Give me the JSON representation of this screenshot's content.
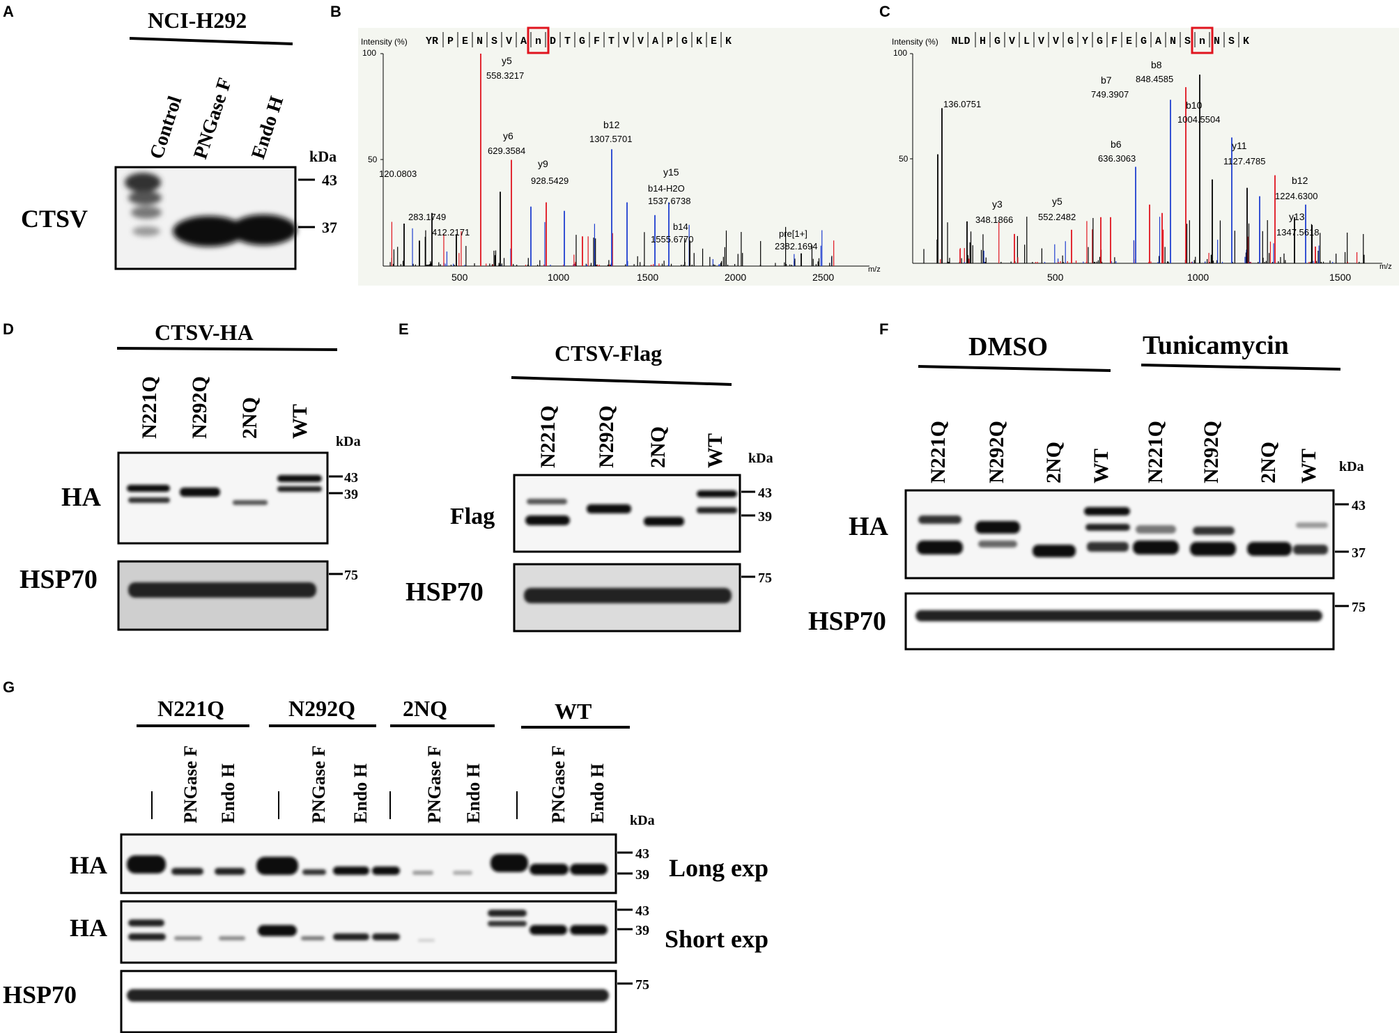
{
  "colors": {
    "y_ion": "#e0141e",
    "b_ion": "#1f3fd0",
    "other": "#000000",
    "highlight": "#e0141e",
    "spec_bg": "#f4f6f0"
  },
  "panelA": {
    "letter": "A",
    "title": "NCI-H292",
    "lanes": [
      "Control",
      "PNGase F",
      "Endo H"
    ],
    "kda_label": "kDa",
    "markers": [
      "43",
      "37"
    ],
    "row_label": "CTSV"
  },
  "panelB": {
    "letter": "B",
    "ylabel": "Intensity (%)",
    "xlabel": "m/z",
    "sequence": [
      "YR",
      "P",
      "E",
      "N",
      "S",
      "V",
      "A",
      "n",
      "D",
      "T",
      "G",
      "F",
      "T",
      "V",
      "V",
      "A",
      "P",
      "G",
      "K",
      "E",
      "K"
    ],
    "highlight_index": 7,
    "y_ticks": [
      "100",
      "50"
    ],
    "x_ticks": [
      "500",
      "1000",
      "1500",
      "2000",
      "2500"
    ],
    "peak_labels": [
      {
        "ion": "y5",
        "mz": "558.3217"
      },
      {
        "ion": "y6",
        "mz": "629.3584"
      },
      {
        "ion": "y9",
        "mz": "928.5429"
      },
      {
        "ion": "b12",
        "mz": "1307.5701"
      },
      {
        "ion": "y15",
        "mz": ""
      },
      {
        "ion": "b14-H2O",
        "mz": "1537.6738"
      },
      {
        "ion": "b14",
        "mz": "1555.6770"
      },
      {
        "ion": "pre[1+]",
        "mz": "2382.1694"
      },
      {
        "ion": "",
        "mz": "120.0803"
      },
      {
        "ion": "",
        "mz": "283.1749"
      },
      {
        "ion": "",
        "mz": "412.2171"
      }
    ]
  },
  "panelC": {
    "letter": "C",
    "ylabel": "Intensity (%)",
    "xlabel": "m/z",
    "sequence": [
      "NLD",
      "H",
      "G",
      "V",
      "L",
      "V",
      "V",
      "G",
      "Y",
      "G",
      "F",
      "E",
      "G",
      "A",
      "N",
      "S",
      "n",
      "N",
      "S",
      "K"
    ],
    "highlight_index": 16,
    "y_ticks": [
      "100",
      "50"
    ],
    "x_ticks": [
      "500",
      "1000",
      "1500"
    ],
    "peak_labels": [
      {
        "ion": "",
        "mz": "136.0751"
      },
      {
        "ion": "y3",
        "mz": "348.1866"
      },
      {
        "ion": "y5",
        "mz": "552.2482"
      },
      {
        "ion": "b6",
        "mz": "636.3063"
      },
      {
        "ion": "b7",
        "mz": "749.3907"
      },
      {
        "ion": "b8",
        "mz": "848.4585"
      },
      {
        "ion": "b10",
        "mz": "1004.5504"
      },
      {
        "ion": "y11",
        "mz": "1127.4785"
      },
      {
        "ion": "b12",
        "mz": "1224.6300"
      },
      {
        "ion": "y13",
        "mz": "1347.5618"
      }
    ]
  },
  "panelD": {
    "letter": "D",
    "title": "CTSV-HA",
    "lanes": [
      "N221Q",
      "N292Q",
      "2NQ",
      "WT"
    ],
    "kda_label": "kDa",
    "markers_top": [
      "43",
      "39"
    ],
    "markers_bottom": [
      "75"
    ],
    "rows": [
      "HA",
      "HSP70"
    ]
  },
  "panelE": {
    "letter": "E",
    "title": "CTSV-Flag",
    "lanes": [
      "N221Q",
      "N292Q",
      "2NQ",
      "WT"
    ],
    "kda_label": "kDa",
    "markers_top": [
      "43",
      "39"
    ],
    "markers_bottom": [
      "75"
    ],
    "rows": [
      "Flag",
      "HSP70"
    ]
  },
  "panelF": {
    "letter": "F",
    "groups": [
      "DMSO",
      "Tunicamycin"
    ],
    "lanes": [
      "N221Q",
      "N292Q",
      "2NQ",
      "WT",
      "N221Q",
      "N292Q",
      "2NQ",
      "WT"
    ],
    "kda_label": "kDa",
    "markers_top": [
      "43",
      "37"
    ],
    "markers_bottom": [
      "75"
    ],
    "rows": [
      "HA",
      "HSP70"
    ]
  },
  "panelG": {
    "letter": "G",
    "groups": [
      "N221Q",
      "N292Q",
      "2NQ",
      "WT"
    ],
    "lanes": [
      "|",
      "PNGase F",
      "Endo H",
      "|",
      "PNGase F",
      "Endo H",
      "|",
      "PNGase F",
      "Endo H",
      "|",
      "PNGase F",
      "Endo H"
    ],
    "kda_label": "kDa",
    "markers_long": [
      "43",
      "39"
    ],
    "markers_short": [
      "43",
      "39"
    ],
    "markers_hsp": [
      "75"
    ],
    "rows": [
      "HA",
      "HA",
      "HSP70"
    ],
    "exposures": [
      "Long exp",
      "Short exp"
    ]
  }
}
